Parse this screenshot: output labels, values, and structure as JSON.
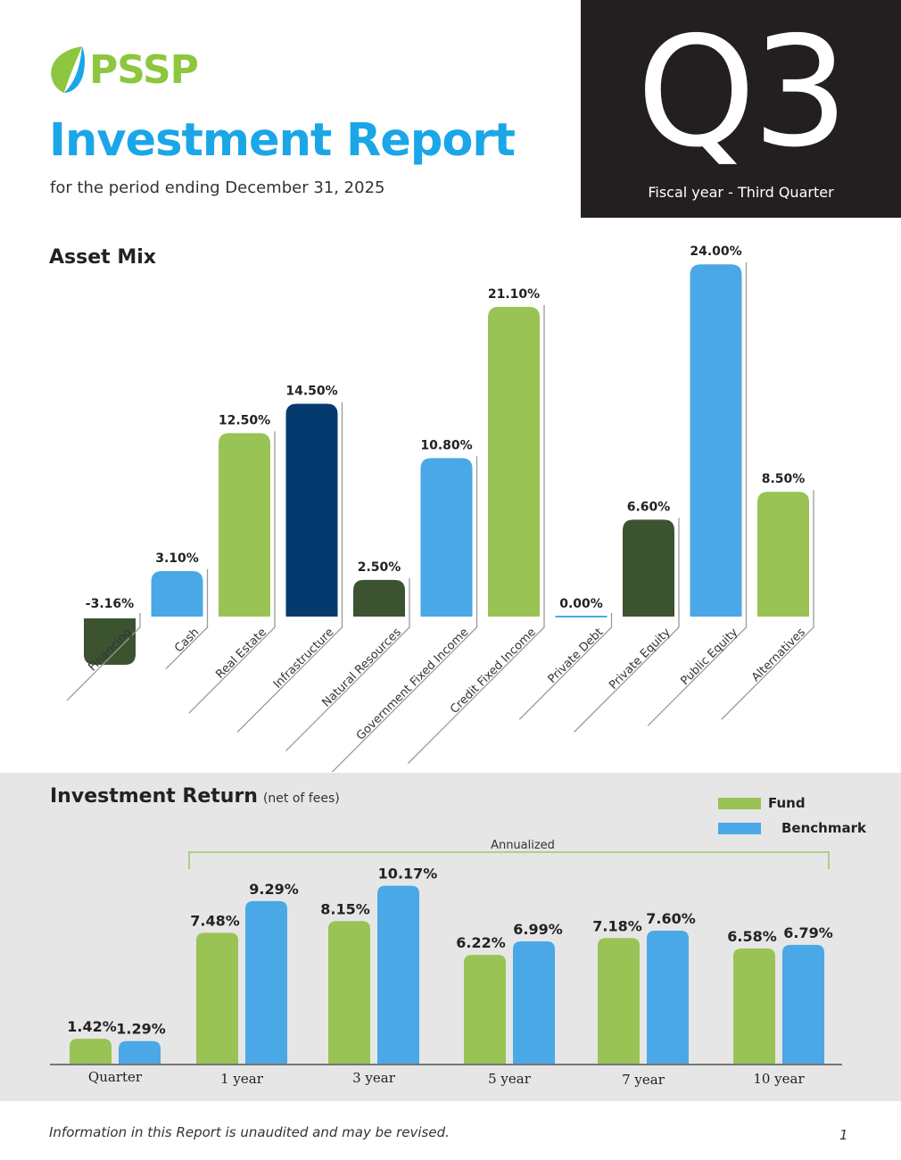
{
  "brand": {
    "name": "PSSP"
  },
  "header": {
    "title": "Investment Report",
    "subtitle": "for the period ending December 31, 2025",
    "quarter": "Q3",
    "quarter_caption": "Fiscal year - Third Quarter"
  },
  "asset_mix": {
    "title": "Asset Mix"
  },
  "investment_return": {
    "title": "Investment Return",
    "note": "(net of fees)"
  },
  "footer": {
    "note": "Information in this Report is unaudited and may be revised.",
    "page": "1"
  },
  "colors": {
    "light_green": "#99c355",
    "light_blue": "#4aa8e6",
    "dark_green": "#3c5330",
    "navy": "#043a6e",
    "title_blue": "#1ba6e8",
    "logo_green": "#8dc63f",
    "panel_gray": "#e6e6e6"
  },
  "chart_data": [
    {
      "type": "bar",
      "title": "Asset Mix",
      "categories": [
        "Financing",
        "Cash",
        "Real Estate",
        "Infrastructure",
        "Natural Resources",
        "Government Fixed Income",
        "Credit Fixed Income",
        "Private Debt",
        "Private Equity",
        "Public Equity",
        "Alternatives"
      ],
      "values": [
        -3.16,
        3.1,
        12.5,
        14.5,
        2.5,
        10.8,
        21.1,
        0.0,
        6.6,
        24.0,
        8.5
      ],
      "data_labels": [
        "-3.16%",
        "3.10%",
        "12.50%",
        "14.50%",
        "2.50%",
        "10.80%",
        "21.10%",
        "0.00%",
        "6.60%",
        "24.00%",
        "8.50%"
      ],
      "bar_colors": [
        "#3c5330",
        "#4aa8e6",
        "#99c355",
        "#043a6e",
        "#3c5330",
        "#4aa8e6",
        "#99c355",
        "#4aa8e6",
        "#3c5330",
        "#4aa8e6",
        "#99c355"
      ],
      "unit": "%",
      "grid": false
    },
    {
      "type": "bar",
      "title": "Investment Return",
      "subtitle": "(net of fees)",
      "categories": [
        "Quarter",
        "1 year",
        "3 year",
        "5 year",
        "7 year",
        "10 year"
      ],
      "series": [
        {
          "name": "Fund",
          "color": "#99c355",
          "values": [
            1.42,
            7.48,
            8.15,
            6.22,
            7.18,
            6.58
          ],
          "labels": [
            "1.42%",
            "7.48%",
            "8.15%",
            "6.22%",
            "7.18%",
            "6.58%"
          ]
        },
        {
          "name": "Benchmark",
          "color": "#4aa8e6",
          "values": [
            1.29,
            9.29,
            10.17,
            6.99,
            7.6,
            6.79
          ],
          "labels": [
            "1.29%",
            "9.29%",
            "10.17%",
            "6.99%",
            "7.60%",
            "6.79%"
          ]
        }
      ],
      "annotation": "Annualized",
      "legend_position": "top-right",
      "unit": "%",
      "grid": false
    }
  ]
}
